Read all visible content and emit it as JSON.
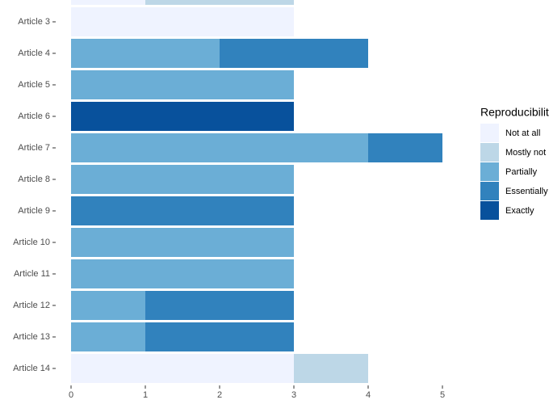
{
  "chart_data": {
    "type": "stacked-bar-horizontal",
    "categories": [
      null,
      "Article 3",
      "Article 4",
      "Article 5",
      "Article 6",
      "Article 7",
      "Article 8",
      "Article 9",
      "Article 10",
      "Article 11",
      "Article 12",
      "Article 13",
      "Article 14"
    ],
    "series": [
      {
        "name": "Not at all",
        "color": "#eff3ff",
        "values": [
          1,
          3,
          0,
          0,
          0,
          0,
          0,
          0,
          0,
          0,
          0,
          0,
          3
        ]
      },
      {
        "name": "Mostly not",
        "color": "#bdd7e7",
        "values": [
          2,
          0,
          0,
          0,
          0,
          0,
          0,
          0,
          0,
          0,
          0,
          0,
          1
        ]
      },
      {
        "name": "Partially",
        "color": "#6baed6",
        "values": [
          0,
          0,
          2,
          3,
          0,
          4,
          3,
          0,
          3,
          3,
          1,
          1,
          0
        ]
      },
      {
        "name": "Essentially",
        "color": "#3182bd",
        "values": [
          0,
          0,
          2,
          0,
          0,
          1,
          0,
          3,
          0,
          0,
          2,
          2,
          0
        ]
      },
      {
        "name": "Exactly",
        "color": "#08519c",
        "values": [
          0,
          0,
          0,
          0,
          3,
          0,
          0,
          0,
          0,
          0,
          0,
          0,
          0
        ]
      }
    ],
    "legend_title": "Reproducibility",
    "xlim": [
      0,
      5
    ],
    "xticks": [
      0,
      1,
      2,
      3,
      4,
      5
    ],
    "grid": false,
    "legend": "right"
  }
}
